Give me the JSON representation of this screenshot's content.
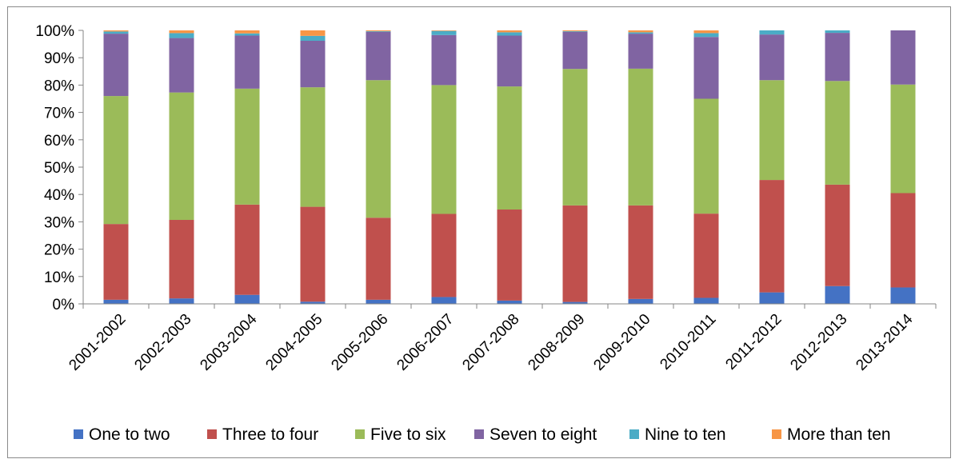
{
  "chart_data": {
    "type": "bar",
    "stacked": true,
    "percent": true,
    "categories": [
      "2001-2002",
      "2002-2003",
      "2003-2004",
      "2004-2005",
      "2005-2006",
      "2006-2007",
      "2007-2008",
      "2008-2009",
      "2009-2010",
      "2010-2011",
      "2011-2012",
      "2012-2013",
      "2013-2014"
    ],
    "y_ticks": [
      "0%",
      "10%",
      "20%",
      "30%",
      "40%",
      "50%",
      "60%",
      "70%",
      "80%",
      "90%",
      "100%"
    ],
    "ylim": [
      0,
      100
    ],
    "grid": false,
    "legend_position": "bottom",
    "series": [
      {
        "name": "One to two",
        "color": "#4472c4",
        "values": [
          1.5,
          2.0,
          3.3,
          0.8,
          1.5,
          2.5,
          1.2,
          0.7,
          1.8,
          2.2,
          4.2,
          6.5,
          6.0
        ]
      },
      {
        "name": "Three to four",
        "color": "#c0504d",
        "values": [
          27.7,
          28.7,
          33.0,
          34.7,
          30.0,
          30.4,
          33.3,
          35.3,
          34.2,
          30.8,
          41.1,
          37.1,
          34.5
        ]
      },
      {
        "name": "Five to six",
        "color": "#9bbb59",
        "values": [
          46.8,
          46.6,
          42.4,
          43.7,
          50.3,
          47.1,
          45.0,
          49.9,
          50.0,
          42.0,
          36.5,
          37.9,
          39.7
        ]
      },
      {
        "name": "Seven to eight",
        "color": "#8064a2",
        "values": [
          22.8,
          19.9,
          19.4,
          17.0,
          17.7,
          18.3,
          18.6,
          13.6,
          12.8,
          22.6,
          16.7,
          17.6,
          19.8
        ]
      },
      {
        "name": "Nine to ten",
        "color": "#4bacc6",
        "values": [
          0.8,
          1.8,
          0.8,
          1.8,
          0.2,
          1.5,
          1.2,
          0.2,
          0.5,
          1.4,
          1.5,
          0.9,
          0.0
        ]
      },
      {
        "name": "More than ten",
        "color": "#f79646",
        "values": [
          0.4,
          1.0,
          1.1,
          2.0,
          0.3,
          0.2,
          0.7,
          0.3,
          0.7,
          1.0,
          0.0,
          0.0,
          0.0
        ]
      }
    ]
  }
}
